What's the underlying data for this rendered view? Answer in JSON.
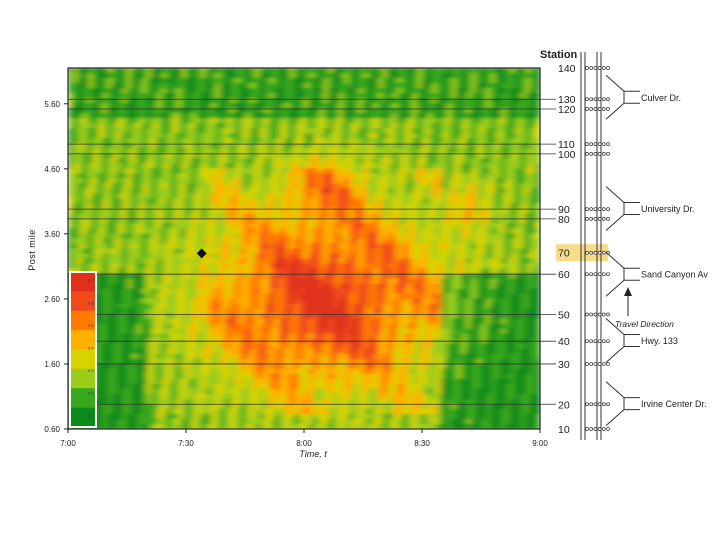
{
  "chart_data": {
    "type": "heatmap",
    "title": "",
    "xlabel": "Time, t",
    "ylabel": "Post mile",
    "x_ticks": [
      "7:00",
      "7:30",
      "8:00",
      "8:30",
      "9:00"
    ],
    "x_range": [
      "7:00",
      "9:00"
    ],
    "y_ticks": [
      0.6,
      1.6,
      2.6,
      3.6,
      4.6,
      5.6
    ],
    "y_range": [
      0.6,
      6.15
    ],
    "color_scale": [
      "#0a8a1a",
      "#3aa81f",
      "#9ccc1a",
      "#d8d200",
      "#ffb000",
      "#ff7a00",
      "#f04a1a",
      "#e0301a"
    ],
    "colorbar_ticks": [
      "0.7",
      "0.6",
      "0.5",
      "0.4",
      "0.3",
      "0.2",
      "0.1"
    ],
    "marker": {
      "time": "7:34",
      "postmile": 3.3
    },
    "station_header": "Station",
    "stations": [
      {
        "label": "140",
        "postmile": 6.15
      },
      {
        "label": "130",
        "postmile": 5.67
      },
      {
        "label": "120",
        "postmile": 5.52
      },
      {
        "label": "110",
        "postmile": 4.98
      },
      {
        "label": "100",
        "postmile": 4.83
      },
      {
        "label": "90",
        "postmile": 3.98
      },
      {
        "label": "80",
        "postmile": 3.83
      },
      {
        "label": "70",
        "postmile": 3.31,
        "highlight": true
      },
      {
        "label": "60",
        "postmile": 2.98
      },
      {
        "label": "50",
        "postmile": 2.36
      },
      {
        "label": "40",
        "postmile": 1.95
      },
      {
        "label": "30",
        "postmile": 1.6
      },
      {
        "label": "20",
        "postmile": 0.98
      },
      {
        "label": "10",
        "postmile": 0.6
      }
    ],
    "station_lines": [
      5.67,
      5.52,
      4.98,
      4.83,
      3.98,
      3.83,
      2.98,
      2.36,
      1.95,
      1.6,
      0.98
    ],
    "ramps": [
      {
        "label": "Culver Dr.",
        "postmile": 5.7
      },
      {
        "label": "University Dr.",
        "postmile": 3.99
      },
      {
        "label": "Sand Canyon Av",
        "postmile": 2.98
      },
      {
        "label": "Hwy. 133",
        "postmile": 1.96
      },
      {
        "label": "Irvine Center Dr.",
        "postmile": 0.99
      }
    ],
    "travel_direction_label": "Travel Direction"
  },
  "colors": {
    "highlight": "#f7dd8a",
    "line": "#333333",
    "text": "#222222"
  },
  "icons": {
    "marker": "diamond-icon",
    "direction": "up-arrow-icon"
  }
}
